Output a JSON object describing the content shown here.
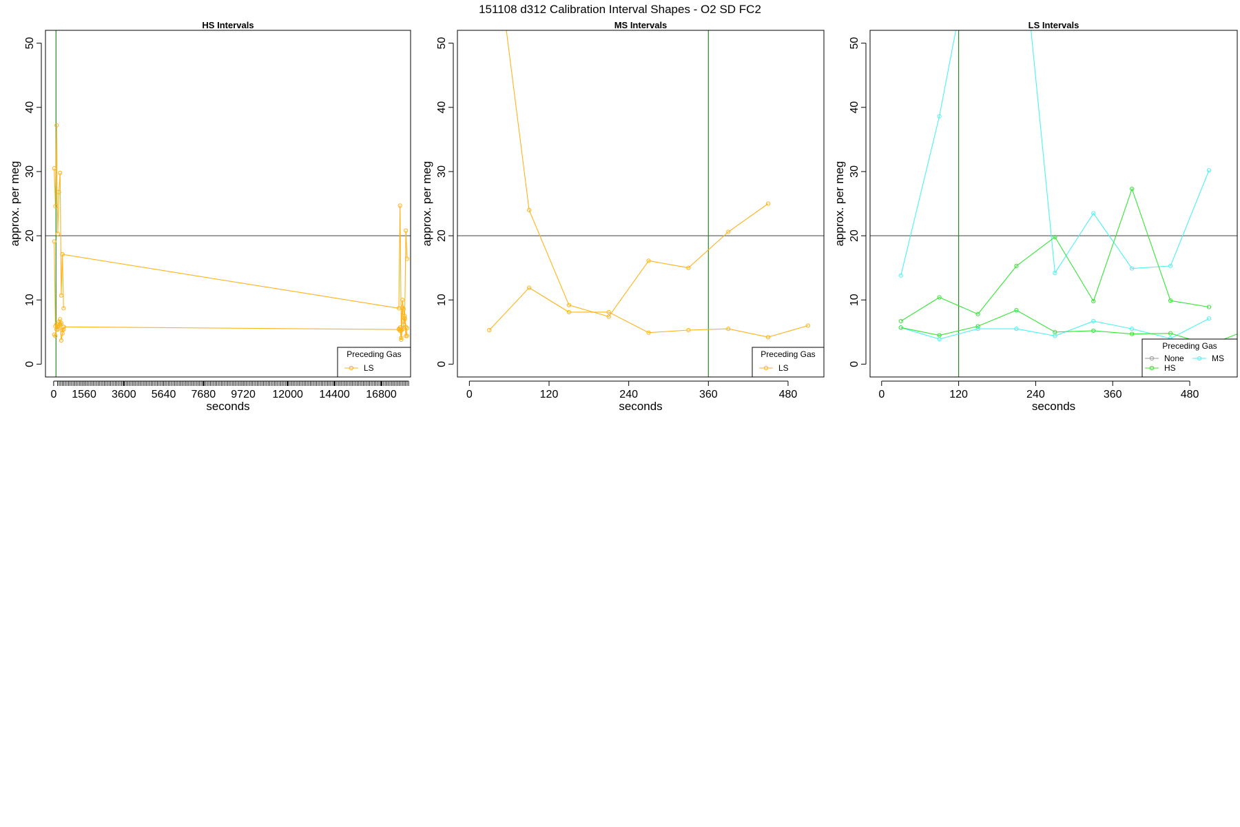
{
  "title": "151108   d312   Calibration Interval Shapes - O2 SD FC2",
  "colors": {
    "LS": "#FFB31A",
    "HS": "#33E633",
    "MS": "#4DF2F2",
    "None": "#999999",
    "ref_h": "#555555",
    "ref_v": "#228B22"
  },
  "chart_data": [
    {
      "type": "line",
      "title": "HS Intervals",
      "xlabel": "seconds",
      "ylabel": "approx. per meg",
      "xlim": [
        -420,
        18300
      ],
      "ylim": [
        -2,
        52
      ],
      "x_ticks": [
        0,
        1560,
        3600,
        5640,
        7680,
        9720,
        12000,
        14400,
        16800
      ],
      "x_minor_ticks_from": 200,
      "x_minor_ticks_to": 18200,
      "x_minor_tick_step": 80,
      "y_ticks": [
        0,
        10,
        20,
        30,
        40,
        50
      ],
      "hline": 20,
      "vline": 120,
      "legend": {
        "title": "Preceding Gas",
        "position": "bottom-right",
        "entries": [
          "LS"
        ]
      },
      "series": [
        {
          "name": "LS",
          "color_key": "LS",
          "x": [
            30,
            90,
            150,
            210,
            270,
            330,
            390,
            450,
            510
          ],
          "y": [
            30.5,
            24.6,
            37.2,
            20.3,
            26.8,
            29.8,
            10.7,
            17.1,
            8.7
          ]
        },
        {
          "name": "LS",
          "color_key": "LS",
          "x": [
            30,
            90,
            150,
            210,
            270,
            330,
            390,
            450,
            510
          ],
          "y": [
            19.1,
            5.9,
            6.2,
            5.4,
            6.6,
            7.0,
            3.7,
            4.8,
            5.8
          ]
        },
        {
          "name": "LS",
          "color_key": "LS",
          "x": [
            30,
            90,
            150,
            210,
            270,
            330,
            390,
            450,
            510
          ],
          "y": [
            4.6,
            4.4,
            5.4,
            5.9,
            6.0,
            6.3,
            6.4,
            5.3,
            5.4
          ]
        },
        {
          "name": "LS",
          "color_key": "LS",
          "x": [
            450,
            17700,
            17760,
            17820,
            17880,
            17940,
            18000,
            18060,
            18120
          ],
          "y": [
            17.1,
            8.7,
            24.7,
            5.3,
            10.0,
            8.6,
            7.2,
            20.8,
            16.4
          ]
        },
        {
          "name": "LS",
          "color_key": "LS",
          "x": [
            510,
            17700,
            17760,
            17820,
            17880,
            17940,
            18000,
            18060,
            18120
          ],
          "y": [
            5.8,
            5.4,
            5.7,
            3.8,
            8.8,
            6.8,
            7.0,
            4.4,
            5.6
          ]
        },
        {
          "name": "LS",
          "color_key": "LS",
          "x": [
            17700,
            17760,
            17820,
            17880,
            17940,
            18000,
            18060,
            18120
          ],
          "y": [
            5.5,
            5.2,
            4.1,
            5.4,
            6.1,
            7.5,
            5.8,
            4.4
          ]
        }
      ]
    },
    {
      "type": "line",
      "title": "MS Intervals",
      "xlabel": "seconds",
      "ylabel": "approx. per meg",
      "xlim": [
        -18,
        534
      ],
      "ylim": [
        -2,
        52
      ],
      "x_ticks": [
        0,
        120,
        240,
        360,
        480
      ],
      "y_ticks": [
        0,
        10,
        20,
        30,
        40,
        50
      ],
      "hline": 20,
      "vline": 360,
      "legend": {
        "title": "Preceding Gas",
        "position": "bottom-right",
        "entries": [
          "LS"
        ]
      },
      "series": [
        {
          "name": "LS",
          "color_key": "LS",
          "x": [
            30,
            90,
            150,
            210,
            270,
            330,
            390,
            450
          ],
          "y": [
            73.0,
            24.0,
            9.2,
            7.4,
            16.1,
            15.0,
            20.6,
            25.0
          ]
        },
        {
          "name": "LS",
          "color_key": "LS",
          "x": [
            30,
            90,
            150,
            210,
            270,
            330,
            390,
            450,
            510
          ],
          "y": [
            5.3,
            11.9,
            8.1,
            8.1,
            4.9,
            5.3,
            5.5,
            4.2,
            6.0
          ]
        }
      ]
    },
    {
      "type": "line",
      "title": "LS Intervals",
      "xlabel": "seconds",
      "ylabel": "approx. per meg",
      "xlim": [
        -18,
        554
      ],
      "ylim": [
        -2,
        52
      ],
      "x_ticks": [
        0,
        120,
        240,
        360,
        480
      ],
      "y_ticks": [
        0,
        10,
        20,
        30,
        40,
        50
      ],
      "hline": 20,
      "vline": 120,
      "legend": {
        "title": "Preceding Gas",
        "position": "bottom-right",
        "entries": [
          "None",
          "MS",
          "HS"
        ]
      },
      "series": [
        {
          "name": "MS",
          "color_key": "MS",
          "x": [
            30,
            90,
            150,
            210,
            270,
            330,
            390,
            450,
            510
          ],
          "y": [
            13.8,
            38.6,
            70.0,
            75.0,
            14.2,
            23.5,
            14.9,
            15.3,
            30.2
          ]
        },
        {
          "name": "MS",
          "color_key": "MS",
          "x": [
            30,
            90,
            150,
            210,
            270,
            330,
            390,
            450,
            510
          ],
          "y": [
            5.7,
            3.9,
            5.5,
            5.5,
            4.4,
            6.7,
            5.5,
            4.0,
            7.1
          ]
        },
        {
          "name": "HS",
          "color_key": "HS",
          "x": [
            30,
            90,
            150,
            210,
            270,
            330,
            390,
            450,
            510
          ],
          "y": [
            6.7,
            10.4,
            7.8,
            15.3,
            19.8,
            9.8,
            27.3,
            9.9,
            8.9
          ]
        },
        {
          "name": "HS",
          "color_key": "HS",
          "x": [
            30,
            90,
            150,
            210,
            270,
            330,
            390,
            450,
            510,
            570
          ],
          "y": [
            5.7,
            4.5,
            5.9,
            8.4,
            5.0,
            5.2,
            4.7,
            4.8,
            3.0,
            5.3
          ]
        }
      ]
    }
  ]
}
